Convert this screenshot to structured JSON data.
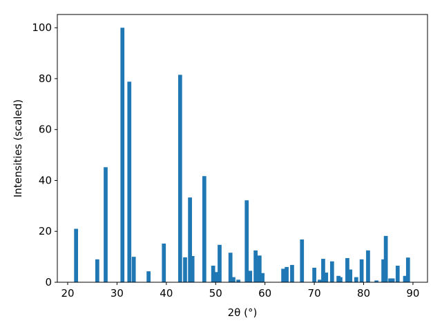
{
  "chart_data": {
    "type": "bar",
    "xlabel": "2θ (°)",
    "ylabel": "Intensities (scaled)",
    "x": [
      21.7,
      26.0,
      27.7,
      31.1,
      32.5,
      33.4,
      36.4,
      39.5,
      42.8,
      43.8,
      44.8,
      45.3,
      47.7,
      49.5,
      50.2,
      50.8,
      53.0,
      53.6,
      54.6,
      56.3,
      57.0,
      58.1,
      58.9,
      59.5,
      63.7,
      64.4,
      65.5,
      67.5,
      70.0,
      71.1,
      71.8,
      72.4,
      73.6,
      74.9,
      75.3,
      76.7,
      77.3,
      78.5,
      79.6,
      80.9,
      82.6,
      84.0,
      84.5,
      85.4,
      85.9,
      86.9,
      88.4,
      89.0
    ],
    "values": [
      21,
      9,
      45.2,
      100,
      78.8,
      10,
      4.3,
      15.2,
      81.5,
      9.8,
      33.3,
      10.3,
      41.7,
      6.5,
      4,
      14.7,
      11.6,
      2,
      1,
      32.2,
      4.5,
      12.5,
      10.5,
      3.6,
      5.3,
      6,
      6.8,
      16.8,
      5.7,
      1,
      9.2,
      3.8,
      8.2,
      2.5,
      2,
      9.5,
      5,
      2,
      9,
      12.5,
      0.7,
      9,
      18.2,
      1.5,
      1.5,
      6.5,
      2.5,
      9.7
    ],
    "bar_width": 0.8,
    "color": "#1f77b4",
    "xlim": [
      17.9,
      92.95
    ],
    "xticks": [
      20,
      30,
      40,
      50,
      60,
      70,
      80,
      90
    ],
    "ylim": [
      0,
      105.2
    ],
    "yticks": [
      0,
      20,
      40,
      60,
      80,
      100
    ]
  }
}
